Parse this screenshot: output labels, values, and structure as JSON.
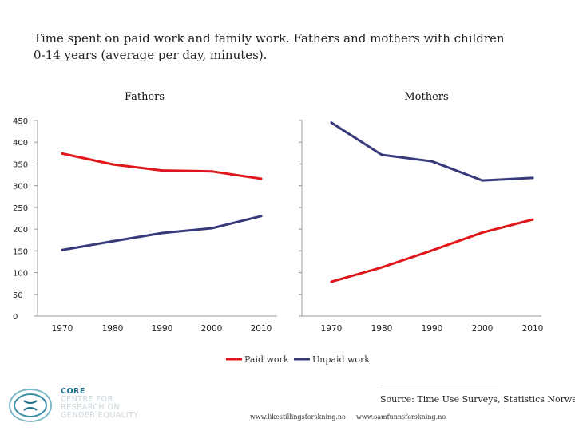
{
  "title_lines": [
    "Time spent on paid work and family work. Fathers and mothers with children",
    "0-14 years (average per day, minutes)."
  ],
  "colors": {
    "paid": "#e0161b",
    "unpaid": "#363a7a",
    "axis": "#999999"
  },
  "chart_data": [
    {
      "type": "line",
      "title": "Fathers",
      "categories": [
        "1970",
        "1980",
        "1990",
        "2000",
        "2010"
      ],
      "series": [
        {
          "name": "Paid work",
          "values": [
            374,
            349,
            335,
            333,
            316
          ]
        },
        {
          "name": "Unpaid work",
          "values": [
            152,
            172,
            191,
            202,
            230
          ]
        }
      ],
      "yticks": [
        "450",
        "400",
        "350",
        "300",
        "250",
        "200",
        "150",
        "100",
        "50",
        "0"
      ],
      "ylim": [
        0,
        450
      ],
      "grid": false
    },
    {
      "type": "line",
      "title": "Mothers",
      "categories": [
        "1970",
        "1980",
        "1990",
        "2000",
        "2010"
      ],
      "series": [
        {
          "name": "Paid work",
          "values": [
            79,
            112,
            151,
            192,
            222
          ]
        },
        {
          "name": "Unpaid work",
          "values": [
            445,
            371,
            356,
            312,
            318
          ]
        }
      ],
      "ylim": [
        0,
        450
      ],
      "grid": false
    }
  ],
  "legend": {
    "paid_label": "Paid work",
    "unpaid_label": "Unpaid work"
  },
  "source": "Source: Time Use Surveys, Statistics Norway",
  "logo": {
    "line1": "CORE",
    "line2": "CENTRE FOR",
    "line3": "RESEARCH ON",
    "line4": "GENDER EQUALITY"
  },
  "urls": [
    "www.likestillingsforskning.no",
    "www.samfunnsforskning.no"
  ]
}
